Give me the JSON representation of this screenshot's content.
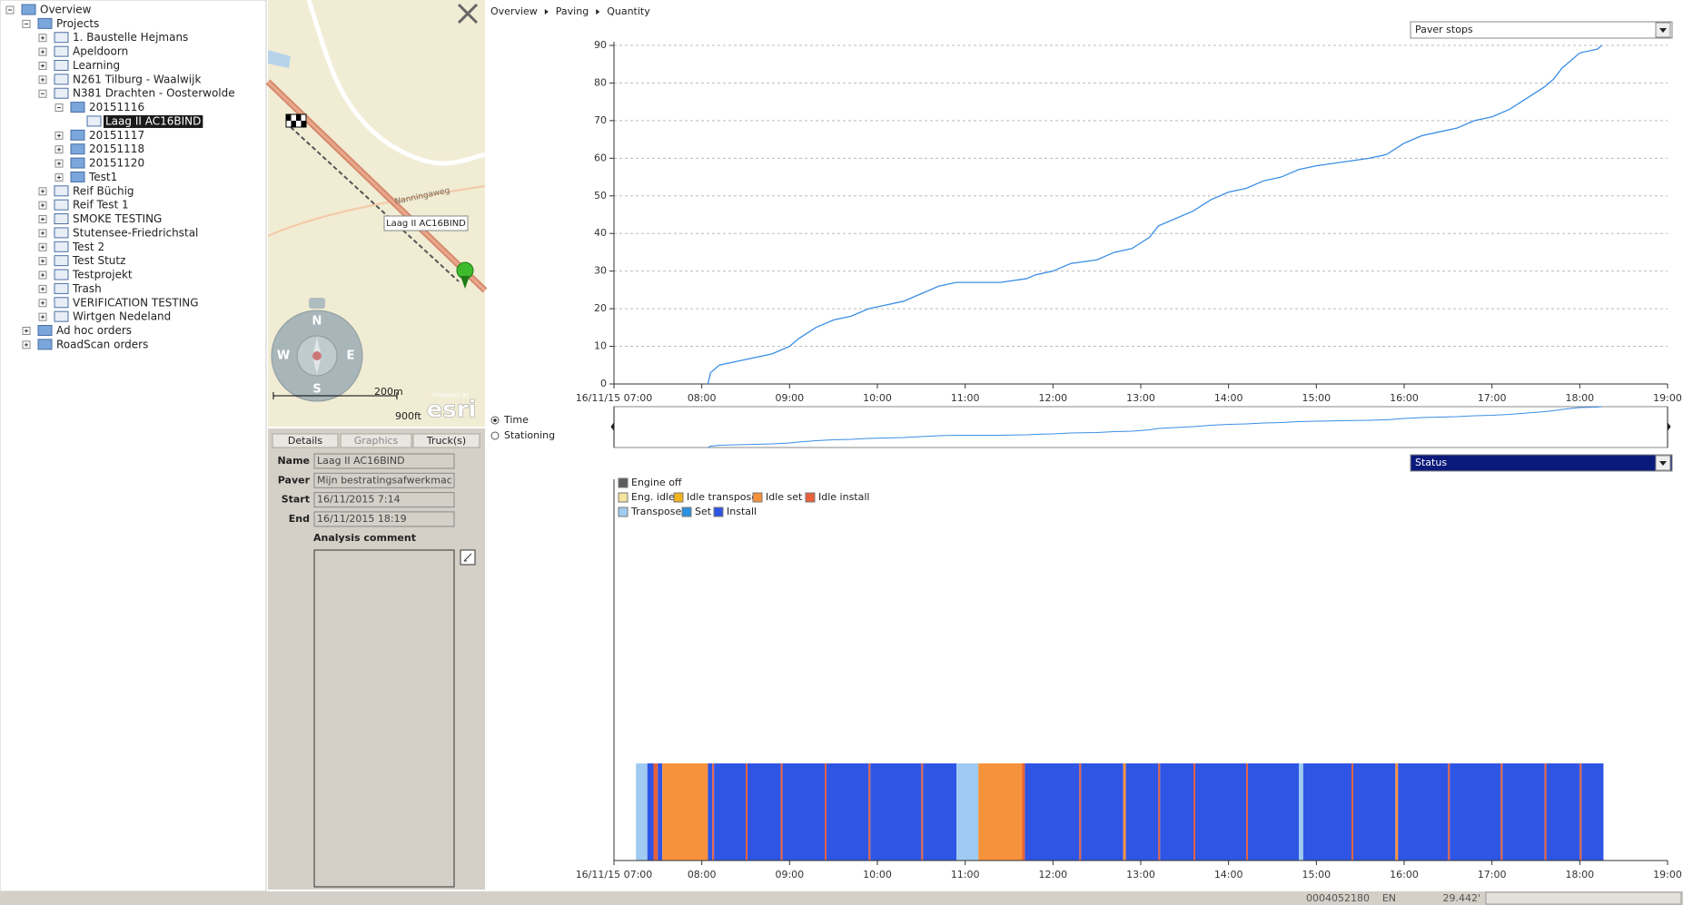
{
  "tree": [
    {
      "label": "Overview",
      "level": 0
    },
    {
      "label": "Projects",
      "level": 1
    },
    {
      "label": "1. Baustelle Hejmans",
      "level": 2
    },
    {
      "label": "Apeldoorn",
      "level": 2
    },
    {
      "label": "Learning",
      "level": 2
    },
    {
      "label": "N261 Tilburg - Waalwijk",
      "level": 2
    },
    {
      "label": "N381 Drachten - Oosterwolde",
      "level": 2
    },
    {
      "label": "20151116",
      "level": 3
    },
    {
      "label": "Laag II AC16BIND",
      "level": 4,
      "selected": true
    },
    {
      "label": "20151117",
      "level": 3
    },
    {
      "label": "20151118",
      "level": 3
    },
    {
      "label": "20151120",
      "level": 3
    },
    {
      "label": "Test1",
      "level": 3
    },
    {
      "label": "Reif Büchig",
      "level": 2
    },
    {
      "label": "Reif Test 1",
      "level": 2
    },
    {
      "label": "SMOKE TESTING",
      "level": 2
    },
    {
      "label": "Stutensee-Friedrichstal",
      "level": 2
    },
    {
      "label": "Test 2",
      "level": 2
    },
    {
      "label": "Test Stutz",
      "level": 2
    },
    {
      "label": "Testprojekt",
      "level": 2
    },
    {
      "label": "Trash",
      "level": 2
    },
    {
      "label": "VERIFICATION TESTING",
      "level": 2
    },
    {
      "label": "Wirtgen Nedeland",
      "level": 2
    },
    {
      "label": "Ad hoc orders",
      "level": 1
    },
    {
      "label": "RoadScan orders",
      "level": 1
    }
  ],
  "map": {
    "street": "Nanningaweg",
    "marker_label": "Laag II AC16BIND",
    "scale_m": "200m",
    "scale_ft": "900ft",
    "compass": [
      "N",
      "E",
      "S",
      "W"
    ],
    "brand_small": "POWERED BY",
    "brand": "esri"
  },
  "details": {
    "tabs": [
      "Details",
      "Graphics",
      "Truck(s)"
    ],
    "fields": [
      {
        "label": "Name",
        "value": "Laag II AC16BIND"
      },
      {
        "label": "Paver",
        "value": "Mijn bestratingsafwerkmac"
      },
      {
        "label": "Start",
        "value": "16/11/2015  7:14"
      },
      {
        "label": "End",
        "value": "16/11/2015 18:19"
      }
    ],
    "comment_label": "Analysis comment"
  },
  "breadcrumb": [
    "Overview",
    "Paving",
    "Quantity"
  ],
  "mode_options": [
    "Time",
    "Stationing"
  ],
  "statusbar": [
    "0004052180",
    "EN",
    "29.442'"
  ],
  "chart_data": [
    {
      "type": "line",
      "selector": "Paver stops",
      "xlim": [
        7,
        19
      ],
      "ylim": [
        0,
        90
      ],
      "xticks": [
        {
          "value": 7,
          "label": "16/11/15 07:00"
        },
        {
          "value": 8,
          "label": "08:00"
        },
        {
          "value": 9,
          "label": "09:00"
        },
        {
          "value": 10,
          "label": "10:00"
        },
        {
          "value": 11,
          "label": "11:00"
        },
        {
          "value": 12,
          "label": "12:00"
        },
        {
          "value": 13,
          "label": "13:00"
        },
        {
          "value": 14,
          "label": "14:00"
        },
        {
          "value": 15,
          "label": "15:00"
        },
        {
          "value": 16,
          "label": "16:00"
        },
        {
          "value": 17,
          "label": "17:00"
        },
        {
          "value": 18,
          "label": "18:00"
        },
        {
          "value": 19,
          "label": "19:00"
        }
      ],
      "yticks": [
        0,
        10,
        20,
        30,
        40,
        50,
        60,
        70,
        80,
        90
      ],
      "grid": true,
      "color": "#3a8ee6",
      "x": [
        8.07,
        8.1,
        8.2,
        8.4,
        8.6,
        8.8,
        9.0,
        9.1,
        9.3,
        9.5,
        9.7,
        9.9,
        10.1,
        10.3,
        10.5,
        10.7,
        10.9,
        11.4,
        11.7,
        11.8,
        12.0,
        12.2,
        12.5,
        12.7,
        12.9,
        13.1,
        13.2,
        13.4,
        13.6,
        13.8,
        14.0,
        14.2,
        14.4,
        14.6,
        14.8,
        15.0,
        15.3,
        15.6,
        15.8,
        16.0,
        16.2,
        16.4,
        16.6,
        16.8,
        17.0,
        17.2,
        17.4,
        17.6,
        17.7,
        17.8,
        17.9,
        18.0,
        18.2,
        18.25
      ],
      "values": [
        0,
        3,
        5,
        6,
        7,
        8,
        10,
        12,
        15,
        17,
        18,
        20,
        21,
        22,
        24,
        26,
        27,
        27,
        28,
        29,
        30,
        32,
        33,
        35,
        36,
        39,
        42,
        44,
        46,
        49,
        51,
        52,
        54,
        55,
        57,
        58,
        59,
        60,
        61,
        64,
        66,
        67,
        68,
        70,
        71,
        73,
        76,
        79,
        81,
        84,
        86,
        88,
        89,
        90
      ]
    },
    {
      "type": "timeline",
      "selector": "Status",
      "xlim": [
        7,
        19
      ],
      "xticks": [
        {
          "value": 7,
          "label": "16/11/15 07:00"
        },
        {
          "value": 8,
          "label": "08:00"
        },
        {
          "value": 9,
          "label": "09:00"
        },
        {
          "value": 10,
          "label": "10:00"
        },
        {
          "value": 11,
          "label": "11:00"
        },
        {
          "value": 12,
          "label": "12:00"
        },
        {
          "value": 13,
          "label": "13:00"
        },
        {
          "value": 14,
          "label": "14:00"
        },
        {
          "value": 15,
          "label": "15:00"
        },
        {
          "value": 16,
          "label": "16:00"
        },
        {
          "value": 17,
          "label": "17:00"
        },
        {
          "value": 18,
          "label": "18:00"
        },
        {
          "value": 19,
          "label": "19:00"
        }
      ],
      "series": [
        {
          "name": "Engine off",
          "color": "#5c5c5c"
        },
        {
          "name": "Eng. idle",
          "color": "#f6e3a0"
        },
        {
          "name": "Idle transpose",
          "color": "#f2b21e"
        },
        {
          "name": "Idle set",
          "color": "#f7923c"
        },
        {
          "name": "Idle install",
          "color": "#e8613a"
        },
        {
          "name": "Transpose",
          "color": "#9fcbf2"
        },
        {
          "name": "Set",
          "color": "#2a90e0"
        },
        {
          "name": "Install",
          "color": "#2f55e4"
        }
      ],
      "segments": [
        [
          7.25,
          7.38,
          5
        ],
        [
          7.38,
          7.45,
          7
        ],
        [
          7.45,
          7.5,
          4
        ],
        [
          7.5,
          7.55,
          7
        ],
        [
          7.55,
          8.07,
          3
        ],
        [
          8.07,
          8.12,
          7
        ],
        [
          8.12,
          8.14,
          4
        ],
        [
          8.14,
          8.5,
          7
        ],
        [
          8.5,
          8.52,
          4
        ],
        [
          8.52,
          8.9,
          7
        ],
        [
          8.9,
          8.92,
          4
        ],
        [
          8.92,
          9.4,
          7
        ],
        [
          9.4,
          9.42,
          4
        ],
        [
          9.42,
          9.9,
          7
        ],
        [
          9.9,
          9.92,
          4
        ],
        [
          9.92,
          10.5,
          7
        ],
        [
          10.5,
          10.52,
          4
        ],
        [
          10.52,
          10.9,
          7
        ],
        [
          10.9,
          11.15,
          5
        ],
        [
          11.15,
          11.65,
          3
        ],
        [
          11.65,
          11.68,
          4
        ],
        [
          11.68,
          12.3,
          7
        ],
        [
          12.3,
          12.32,
          4
        ],
        [
          12.32,
          12.8,
          7
        ],
        [
          12.8,
          12.83,
          3
        ],
        [
          12.83,
          13.2,
          7
        ],
        [
          13.2,
          13.22,
          4
        ],
        [
          13.22,
          13.6,
          7
        ],
        [
          13.6,
          13.62,
          4
        ],
        [
          13.62,
          14.2,
          7
        ],
        [
          14.2,
          14.22,
          4
        ],
        [
          14.22,
          14.8,
          7
        ],
        [
          14.8,
          14.85,
          5
        ],
        [
          14.85,
          15.4,
          7
        ],
        [
          15.4,
          15.42,
          4
        ],
        [
          15.42,
          15.9,
          7
        ],
        [
          15.9,
          15.93,
          3
        ],
        [
          15.93,
          16.5,
          7
        ],
        [
          16.5,
          16.52,
          4
        ],
        [
          16.52,
          17.1,
          7
        ],
        [
          17.1,
          17.12,
          4
        ],
        [
          17.12,
          17.6,
          7
        ],
        [
          17.6,
          17.62,
          4
        ],
        [
          17.62,
          18.0,
          7
        ],
        [
          18.0,
          18.02,
          4
        ],
        [
          18.02,
          18.27,
          7
        ]
      ]
    }
  ]
}
